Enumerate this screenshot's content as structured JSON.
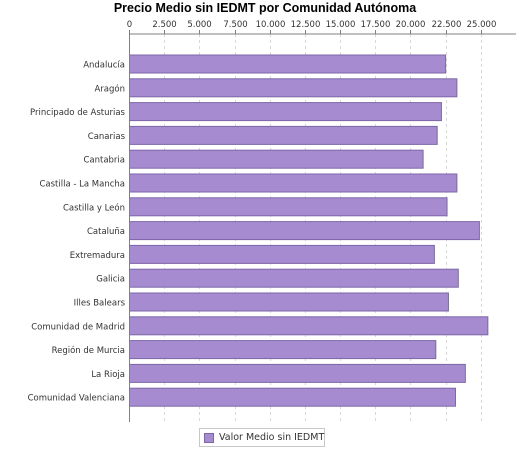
{
  "chart_data": {
    "type": "bar",
    "orientation": "horizontal",
    "title": "Precio Medio sin IEDMT por Comunidad Autónoma",
    "xlim": [
      0,
      27500
    ],
    "xticks": [
      0,
      2500,
      5000,
      7500,
      10000,
      12500,
      15000,
      17500,
      20000,
      22500,
      25000
    ],
    "xtick_labels": [
      "0",
      "2.500",
      "5.000",
      "7.500",
      "10.000",
      "12.500",
      "15.000",
      "17.500",
      "20.000",
      "22.500",
      "25.000"
    ],
    "tick_position": "top",
    "grid": true,
    "legend_position": "bottom",
    "bar_color": "#a68bd1",
    "bar_edge_color": "#7d66a8",
    "categories": [
      "Andalucía",
      "Aragón",
      "Principado de Asturias",
      "Canarias",
      "Cantabria",
      "Castilla - La Mancha",
      "Castilla y León",
      "Cataluña",
      "Extremadura",
      "Galicia",
      "Illes Balears",
      "Comunidad de Madrid",
      "Región de Murcia",
      "La Rioja",
      "Comunidad Valenciana"
    ],
    "series": [
      {
        "name": "Valor Medio sin IEDMT",
        "values": [
          22500,
          23300,
          22200,
          21900,
          20900,
          23300,
          22600,
          24900,
          21700,
          23400,
          22700,
          25500,
          21800,
          23900,
          23200
        ]
      }
    ]
  }
}
